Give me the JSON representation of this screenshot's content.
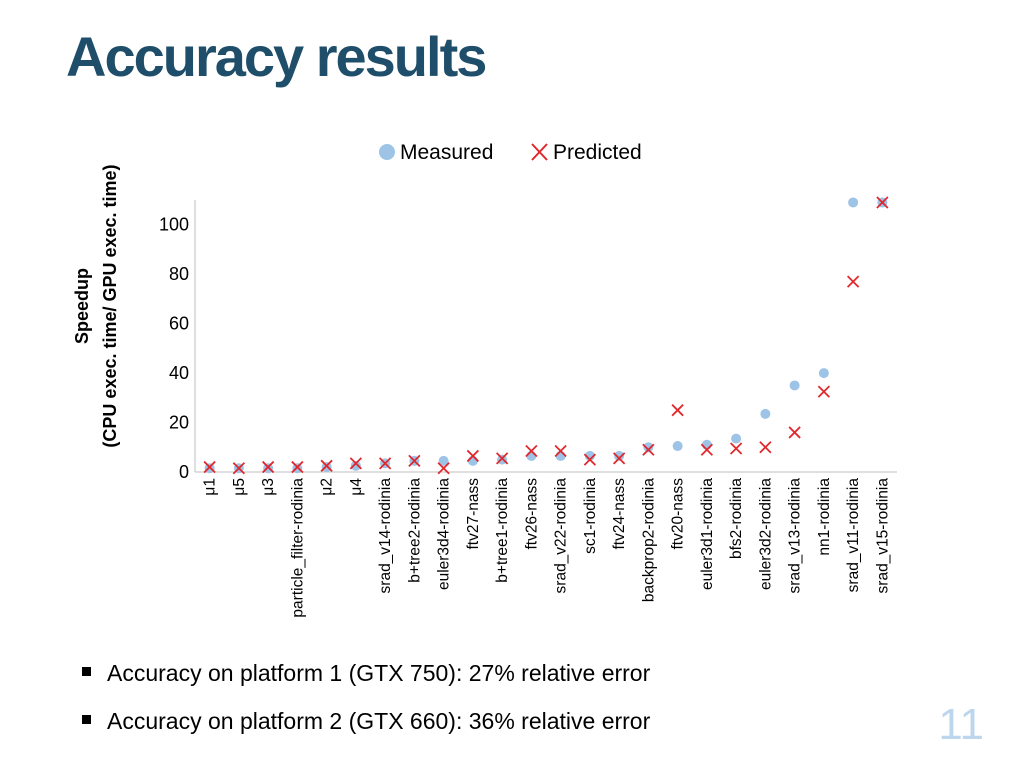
{
  "slide": {
    "title": "Accuracy results",
    "page_number": "11",
    "bullets": [
      "Accuracy on platform 1 (GTX 750): 27% relative error",
      "Accuracy on platform 2 (GTX 660): 36% relative error"
    ]
  },
  "chart_data": {
    "type": "scatter",
    "ylabel_lines": [
      "Speedup",
      "(CPU exec. time/ GPU exec. time)"
    ],
    "xlabel": "",
    "ylim": [
      0,
      110
    ],
    "yticks": [
      0,
      20,
      40,
      60,
      80,
      100
    ],
    "grid": false,
    "legend_position": "top-center",
    "categories": [
      "μ1",
      "μ5",
      "μ3",
      "particle_filter-rodinia",
      "μ2",
      "μ4",
      "srad_v14-rodinia",
      "b+tree2-rodinia",
      "euler3d4-rodinia",
      "ftv27-nass",
      "b+tree1-rodinia",
      "ftv26-nass",
      "srad_v22-rodinia",
      "sc1-rodinia",
      "ftv24-nass",
      "backprop2-rodinia",
      "ftv20-nass",
      "euler3d1-rodinia",
      "bfs2-rodinia",
      "euler3d2-rodinia",
      "srad_v13-rodinia",
      "nn1-rodinia",
      "srad_v11-rodinia",
      "srad_v15-rodinia"
    ],
    "series": [
      {
        "name": "Measured",
        "marker": "circle",
        "color": "#9dc3e6",
        "values": [
          1.5,
          1.5,
          1.5,
          1.5,
          2,
          2.5,
          3.5,
          4.5,
          4.5,
          4.5,
          5,
          6.5,
          6.5,
          6.5,
          6.5,
          10,
          10.5,
          11,
          13.5,
          23.5,
          35,
          40,
          109,
          109
        ]
      },
      {
        "name": "Predicted",
        "marker": "x",
        "color": "#e0282c",
        "values": [
          2,
          1.5,
          2,
          2,
          2.5,
          3.5,
          3.5,
          4.5,
          1.5,
          6.5,
          5.5,
          8.5,
          8.5,
          5,
          5.5,
          9,
          25,
          9,
          9.5,
          10,
          16,
          32.5,
          77,
          109
        ]
      }
    ]
  }
}
